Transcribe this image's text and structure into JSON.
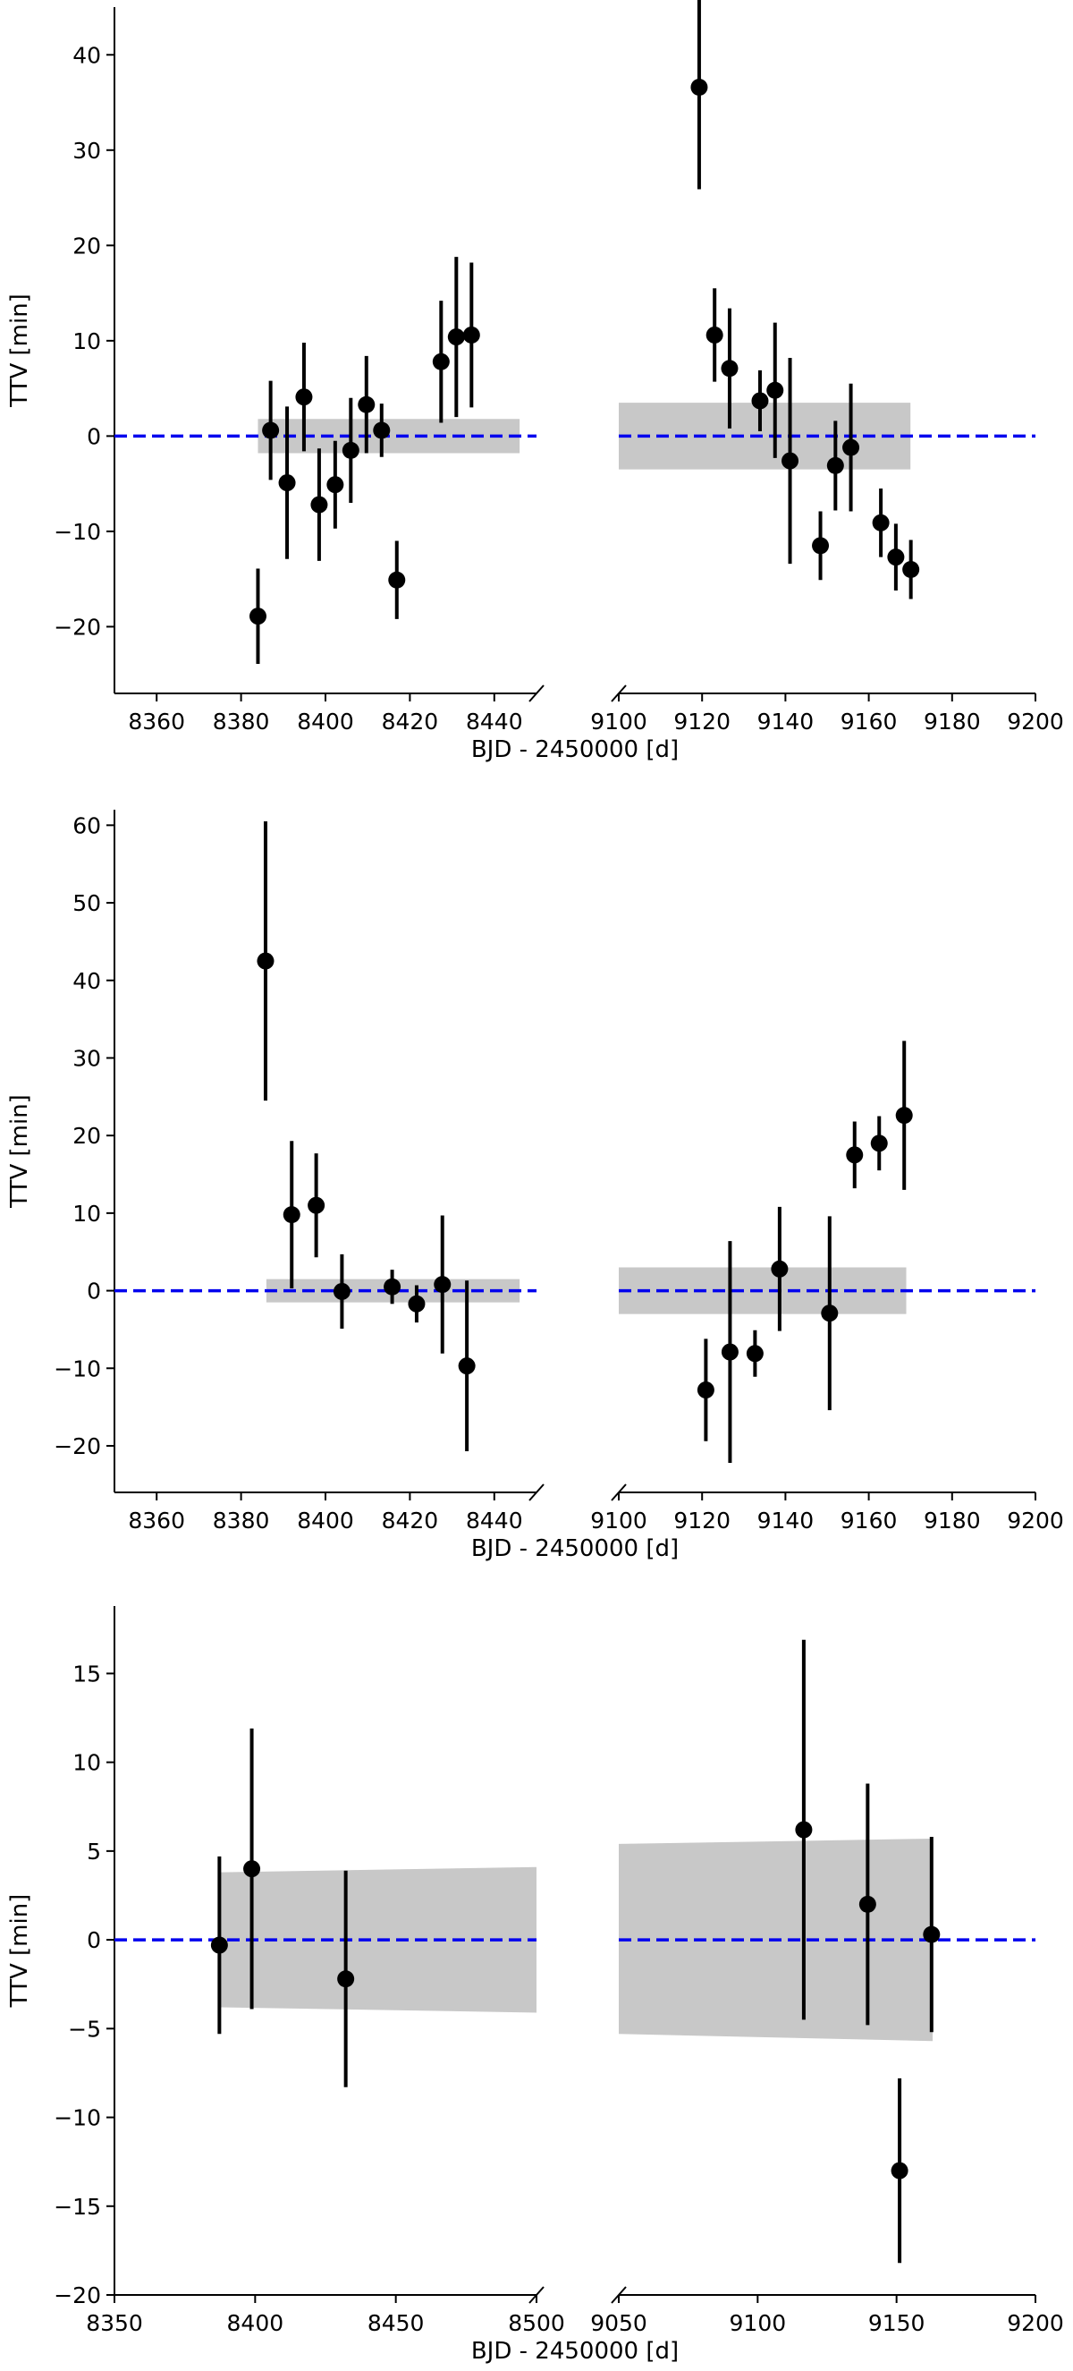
{
  "chart_data": [
    {
      "type": "scatter",
      "ylabel": "TTV [min]",
      "xlabel": "BJD - 2450000 [d]",
      "ylim": [
        -27,
        45
      ],
      "yticks": [
        -20,
        -10,
        0,
        10,
        20,
        30,
        40
      ],
      "reference_line": {
        "y": 0,
        "style": "dashed",
        "color": "#0000ee"
      },
      "segments": [
        {
          "xlim": [
            8350,
            8450
          ],
          "xticks": [
            8360,
            8380,
            8400,
            8420,
            8440
          ],
          "band": {
            "x": [
              8384,
              8446
            ],
            "lower": [
              -1.8,
              -1.8
            ],
            "upper": [
              1.8,
              1.8
            ]
          },
          "points": [
            {
              "x": 8384.0,
              "y": -18.9,
              "err": 5.0
            },
            {
              "x": 8387.0,
              "y": 0.6,
              "err": 5.2
            },
            {
              "x": 8390.9,
              "y": -4.9,
              "err": 8.0
            },
            {
              "x": 8394.9,
              "y": 4.1,
              "err": 5.7
            },
            {
              "x": 8398.5,
              "y": -7.2,
              "err": 5.9
            },
            {
              "x": 8402.3,
              "y": -5.1,
              "err": 4.6
            },
            {
              "x": 8406.0,
              "y": -1.5,
              "err": 5.5
            },
            {
              "x": 8409.7,
              "y": 3.3,
              "err": 5.1
            },
            {
              "x": 8413.3,
              "y": 0.6,
              "err": 2.8
            },
            {
              "x": 8416.9,
              "y": -15.1,
              "err": 4.1
            },
            {
              "x": 8427.4,
              "y": 7.8,
              "err": 6.4
            },
            {
              "x": 8431.0,
              "y": 10.4,
              "err": 8.4
            },
            {
              "x": 8434.6,
              "y": 10.6,
              "err": 7.6
            }
          ]
        },
        {
          "xlim": [
            9100,
            9200
          ],
          "xticks": [
            9100,
            9120,
            9140,
            9160,
            9180,
            9200
          ],
          "band": {
            "x": [
              9100,
              9170
            ],
            "lower": [
              -3.5,
              -3.5
            ],
            "upper": [
              3.5,
              3.5
            ]
          },
          "points": [
            {
              "x": 9119.3,
              "y": 36.6,
              "err": 10.7
            },
            {
              "x": 9123.0,
              "y": 10.6,
              "err": 4.9
            },
            {
              "x": 9126.6,
              "y": 7.1,
              "err": 6.3
            },
            {
              "x": 9133.9,
              "y": 3.7,
              "err": 3.2
            },
            {
              "x": 9137.5,
              "y": 4.8,
              "err": 7.1
            },
            {
              "x": 9141.1,
              "y": -2.6,
              "err": 10.8
            },
            {
              "x": 9148.4,
              "y": -11.5,
              "err": 3.6
            },
            {
              "x": 9152.0,
              "y": -3.1,
              "err": 4.7
            },
            {
              "x": 9155.7,
              "y": -1.2,
              "err": 6.7
            },
            {
              "x": 9162.9,
              "y": -9.1,
              "err": 3.6
            },
            {
              "x": 9166.5,
              "y": -12.7,
              "err": 3.5
            },
            {
              "x": 9170.1,
              "y": -14.0,
              "err": 3.1
            }
          ]
        }
      ]
    },
    {
      "type": "scatter",
      "ylabel": "TTV [min]",
      "xlabel": "BJD - 2450000 [d]",
      "ylim": [
        -26,
        62
      ],
      "yticks": [
        -20,
        -10,
        0,
        10,
        20,
        30,
        40,
        50,
        60
      ],
      "reference_line": {
        "y": 0,
        "style": "dashed",
        "color": "#0000ee"
      },
      "segments": [
        {
          "xlim": [
            8350,
            8450
          ],
          "xticks": [
            8360,
            8380,
            8400,
            8420,
            8440
          ],
          "band": {
            "x": [
              8386,
              8446
            ],
            "lower": [
              -1.5,
              -1.5
            ],
            "upper": [
              1.5,
              1.5
            ]
          },
          "points": [
            {
              "x": 8385.8,
              "y": 42.5,
              "err": 18.0
            },
            {
              "x": 8392.0,
              "y": 9.8,
              "err": 9.5
            },
            {
              "x": 8397.8,
              "y": 11.0,
              "err": 6.7
            },
            {
              "x": 8403.9,
              "y": -0.1,
              "err": 4.8
            },
            {
              "x": 8415.8,
              "y": 0.5,
              "err": 2.2
            },
            {
              "x": 8421.6,
              "y": -1.7,
              "err": 2.4
            },
            {
              "x": 8427.7,
              "y": 0.8,
              "err": 8.9
            },
            {
              "x": 8433.5,
              "y": -9.7,
              "err": 11.0
            }
          ]
        },
        {
          "xlim": [
            9100,
            9200
          ],
          "xticks": [
            9100,
            9120,
            9140,
            9160,
            9180,
            9200
          ],
          "band": {
            "x": [
              9100,
              9169
            ],
            "lower": [
              -3.0,
              -3.0
            ],
            "upper": [
              3.0,
              3.0
            ]
          },
          "points": [
            {
              "x": 9120.9,
              "y": -12.8,
              "err": 6.6
            },
            {
              "x": 9126.7,
              "y": -7.9,
              "err": 14.3
            },
            {
              "x": 9132.7,
              "y": -8.1,
              "err": 3.0
            },
            {
              "x": 9138.6,
              "y": 2.8,
              "err": 8.0
            },
            {
              "x": 9150.6,
              "y": -2.9,
              "err": 12.5
            },
            {
              "x": 9156.6,
              "y": 17.5,
              "err": 4.3
            },
            {
              "x": 9162.5,
              "y": 19.0,
              "err": 3.5
            },
            {
              "x": 9168.5,
              "y": 22.6,
              "err": 9.6
            }
          ]
        }
      ]
    },
    {
      "type": "scatter",
      "ylabel": "TTV [min]",
      "xlabel": "BJD - 2450000 [d]",
      "ylim": [
        -20,
        18.8
      ],
      "yticks": [
        -20,
        -15,
        -10,
        -5,
        0,
        5,
        10,
        15
      ],
      "reference_line": {
        "y": 0,
        "style": "dashed",
        "color": "#0000ee"
      },
      "segments": [
        {
          "xlim": [
            8350,
            8500
          ],
          "xticks": [
            8350,
            8400,
            8450,
            8500
          ],
          "band": {
            "x": [
              8387,
              8500
            ],
            "lower": [
              -3.8,
              -4.1
            ],
            "upper": [
              3.8,
              4.1
            ]
          },
          "points": [
            {
              "x": 8387.3,
              "y": -0.3,
              "err": 5.0
            },
            {
              "x": 8398.8,
              "y": 4.0,
              "err": 7.9
            },
            {
              "x": 8432.2,
              "y": -2.2,
              "err": 6.1
            }
          ]
        },
        {
          "xlim": [
            9050,
            9200
          ],
          "xticks": [
            9050,
            9100,
            9150,
            9200
          ],
          "band": {
            "x": [
              9050,
              9163
            ],
            "lower": [
              -5.3,
              -5.7
            ],
            "upper": [
              5.4,
              5.7
            ]
          },
          "points": [
            {
              "x": 9116.6,
              "y": 6.2,
              "err": 10.7
            },
            {
              "x": 9139.6,
              "y": 2.0,
              "err": 6.8
            },
            {
              "x": 9151.1,
              "y": -13.0,
              "err": 5.2
            },
            {
              "x": 9162.6,
              "y": 0.3,
              "err": 5.5
            }
          ]
        }
      ]
    }
  ]
}
